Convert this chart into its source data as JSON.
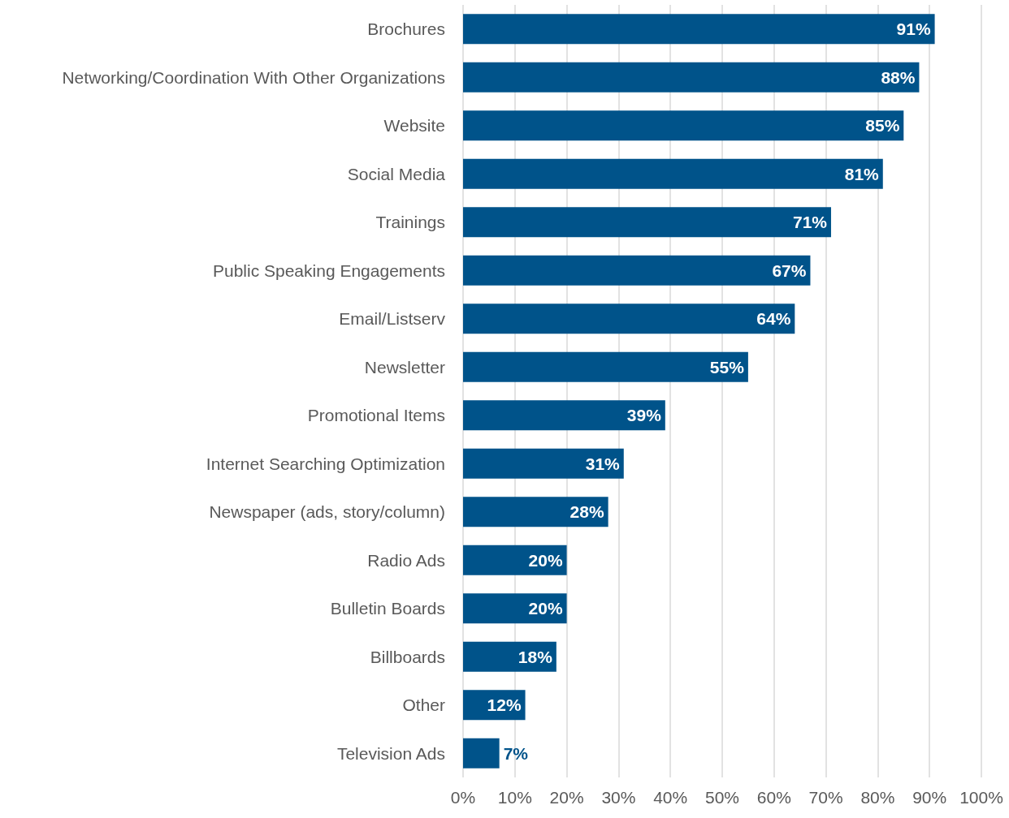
{
  "chart_data": {
    "type": "bar",
    "orientation": "horizontal",
    "categories": [
      "Brochures",
      "Networking/Coordination With Other Organizations",
      "Website",
      "Social Media",
      "Trainings",
      "Public Speaking Engagements",
      "Email/Listserv",
      "Newsletter",
      "Promotional Items",
      "Internet Searching Optimization",
      "Newspaper (ads, story/column)",
      "Radio Ads",
      "Bulletin Boards",
      "Billboards",
      "Other",
      "Television Ads"
    ],
    "values": [
      91,
      88,
      85,
      81,
      71,
      67,
      64,
      55,
      39,
      31,
      28,
      20,
      20,
      18,
      12,
      7
    ],
    "value_labels": [
      "91%",
      "88%",
      "85%",
      "81%",
      "71%",
      "67%",
      "64%",
      "55%",
      "39%",
      "31%",
      "28%",
      "20%",
      "20%",
      "18%",
      "12%",
      "7%"
    ],
    "color": "#00538a",
    "xlim": [
      0,
      100
    ],
    "xticks": [
      {
        "value": 0,
        "label": "0%"
      },
      {
        "value": 10,
        "label": "10%"
      },
      {
        "value": 20,
        "label": "20%"
      },
      {
        "value": 30,
        "label": "30%"
      },
      {
        "value": 40,
        "label": "40%"
      },
      {
        "value": 50,
        "label": "50%"
      },
      {
        "value": 60,
        "label": "60%"
      },
      {
        "value": 70,
        "label": "70%"
      },
      {
        "value": 80,
        "label": "80%"
      },
      {
        "value": 90,
        "label": "90%"
      },
      {
        "value": 100,
        "label": "100%"
      }
    ],
    "grid": "x"
  }
}
